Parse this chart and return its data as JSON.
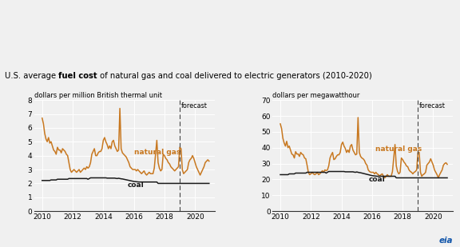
{
  "title_normal1": "U.S. average ",
  "title_bold": "fuel cost",
  "title_normal2": " of natural gas and coal delivered to electric generators (2010-2020)",
  "ylabel_left": "dollars per million British thermal unit",
  "ylabel_right": "dollars per megawatthour",
  "forecast_year": 2019.0,
  "ylim_left": [
    0,
    8
  ],
  "ylim_right": [
    0,
    70
  ],
  "yticks_left": [
    0,
    1,
    2,
    3,
    4,
    5,
    6,
    7,
    8
  ],
  "yticks_right": [
    0,
    10,
    20,
    30,
    40,
    50,
    60,
    70
  ],
  "xticks": [
    2010,
    2012,
    2014,
    2016,
    2018,
    2020
  ],
  "xlim": [
    2009.5,
    2021.3
  ],
  "ng_color": "#C87820",
  "coal_color": "#1a1a1a",
  "background_color": "#f0f0f0",
  "ng_label": "natural gas",
  "coal_label": "coal",
  "forecast_label": "forecast",
  "ng_data_left": [
    6.7,
    6.3,
    5.6,
    5.2,
    5.0,
    5.3,
    4.9,
    5.0,
    4.7,
    4.4,
    4.3,
    4.1,
    4.6,
    4.4,
    4.4,
    4.2,
    4.5,
    4.4,
    4.3,
    4.1,
    4.0,
    3.5,
    3.0,
    2.8,
    2.9,
    3.0,
    2.9,
    2.8,
    2.9,
    3.0,
    2.8,
    2.9,
    3.0,
    3.1,
    3.0,
    3.2,
    3.1,
    3.2,
    3.5,
    4.1,
    4.3,
    4.5,
    4.0,
    4.0,
    4.2,
    4.3,
    4.3,
    4.5,
    5.1,
    5.3,
    5.0,
    4.8,
    4.5,
    4.7,
    4.5,
    5.0,
    5.1,
    4.7,
    4.5,
    4.3,
    4.4,
    7.4,
    4.5,
    4.2,
    4.1,
    4.0,
    3.9,
    3.7,
    3.5,
    3.2,
    3.1,
    3.0,
    3.0,
    3.0,
    2.9,
    3.0,
    2.9,
    2.8,
    2.7,
    2.8,
    2.9,
    2.7,
    2.6,
    2.7,
    2.8,
    2.7,
    2.7,
    2.7,
    3.1,
    4.1,
    5.1,
    3.5,
    3.1,
    2.9,
    3.0,
    4.1,
    4.0,
    3.8,
    3.7,
    3.5,
    3.4,
    3.2,
    3.1,
    3.0,
    2.9,
    3.0,
    3.1,
    3.2,
    4.6,
    4.5,
    3.0,
    2.7,
    2.8,
    2.9,
    3.0,
    3.5,
    3.7,
    3.8,
    4.0,
    3.8,
    3.5,
    3.2,
    3.0,
    2.8,
    2.6,
    2.8,
    3.0,
    3.2,
    3.5,
    3.6,
    3.7,
    3.6
  ],
  "coal_data_left": [
    2.21,
    2.21,
    2.21,
    2.21,
    2.21,
    2.21,
    2.21,
    2.25,
    2.25,
    2.25,
    2.25,
    2.25,
    2.3,
    2.3,
    2.3,
    2.3,
    2.3,
    2.3,
    2.3,
    2.3,
    2.3,
    2.35,
    2.35,
    2.35,
    2.35,
    2.35,
    2.35,
    2.35,
    2.35,
    2.35,
    2.35,
    2.35,
    2.35,
    2.35,
    2.35,
    2.35,
    2.3,
    2.35,
    2.4,
    2.4,
    2.4,
    2.4,
    2.4,
    2.4,
    2.4,
    2.4,
    2.4,
    2.4,
    2.4,
    2.4,
    2.4,
    2.38,
    2.38,
    2.38,
    2.38,
    2.38,
    2.38,
    2.38,
    2.36,
    2.35,
    2.37,
    2.35,
    2.33,
    2.32,
    2.3,
    2.28,
    2.26,
    2.24,
    2.22,
    2.2,
    2.18,
    2.16,
    2.14,
    2.13,
    2.12,
    2.11,
    2.1,
    2.1,
    2.1,
    2.1,
    2.1,
    2.1,
    2.1,
    2.1,
    2.1,
    2.1,
    2.1,
    2.1,
    2.1,
    2.1,
    2.1,
    2.0,
    2.0,
    2.0,
    2.0,
    2.0,
    2.0,
    2.0,
    2.0,
    2.0,
    2.0,
    2.0,
    2.0,
    2.0,
    2.0,
    2.0,
    2.0,
    2.0,
    2.0,
    2.0,
    2.0,
    2.0,
    2.0,
    2.0,
    2.0,
    2.0,
    2.0,
    2.0,
    2.0,
    2.0,
    2.0,
    2.0,
    2.0,
    2.0,
    2.0,
    2.0,
    2.0,
    2.0,
    2.0,
    2.0,
    2.0,
    2.0
  ],
  "ng_data_right": [
    55,
    52,
    46,
    43,
    41,
    44,
    40,
    41,
    38.5,
    36,
    35.5,
    33.5,
    37.5,
    36,
    36,
    34.5,
    37,
    36,
    35.5,
    33.5,
    33,
    29,
    24.5,
    23,
    23.5,
    24.5,
    23.5,
    23,
    23.5,
    24.5,
    23,
    23.5,
    24.5,
    25.5,
    24.5,
    26,
    25.5,
    26,
    28.5,
    33.5,
    35.5,
    37,
    32.5,
    33,
    34.5,
    35.5,
    35.5,
    37,
    42,
    43.5,
    41,
    39.5,
    37,
    38.5,
    37,
    41,
    42,
    38.5,
    37,
    35.5,
    36,
    59,
    37,
    34.5,
    33.5,
    33,
    32,
    30,
    29,
    26,
    25,
    24.5,
    24.5,
    24.5,
    23.5,
    24.5,
    23.5,
    23,
    22,
    23,
    23.5,
    22,
    21,
    22,
    23,
    22,
    22,
    22,
    25,
    33.5,
    42,
    28.5,
    25,
    23.5,
    24.5,
    33.5,
    32.5,
    31,
    30,
    28.5,
    28,
    26,
    25,
    24.5,
    23.5,
    24.5,
    25,
    26,
    37,
    37,
    24.5,
    22,
    23,
    23.5,
    24.5,
    29,
    30,
    31,
    33,
    31,
    29,
    26,
    24.5,
    23,
    21,
    23,
    24.5,
    26,
    29,
    30,
    30.5,
    29.5
  ],
  "coal_data_right": [
    23,
    23,
    23,
    23,
    23,
    23,
    23,
    23.5,
    23.5,
    23.5,
    23.5,
    23.5,
    24,
    24,
    24,
    24,
    24,
    24,
    24,
    24,
    24,
    24.5,
    24.5,
    24.5,
    24.5,
    24.5,
    24.5,
    24.5,
    24.5,
    24.5,
    24.5,
    24.5,
    24.5,
    24.5,
    24.5,
    24.5,
    24,
    24.5,
    25,
    25,
    25,
    25,
    25,
    25,
    25,
    25,
    25,
    25,
    25,
    25,
    25,
    24.8,
    24.8,
    24.8,
    24.8,
    24.8,
    24.8,
    24.8,
    24.6,
    24.5,
    24.7,
    24.5,
    24.3,
    24.2,
    24.0,
    23.8,
    23.6,
    23.4,
    23.2,
    23,
    22.8,
    22.6,
    22.4,
    22.3,
    22.2,
    22.1,
    22,
    22,
    22,
    22,
    22,
    22,
    22,
    22,
    22,
    22,
    22,
    22,
    22,
    22,
    22,
    21,
    21,
    21,
    21,
    21,
    21,
    21,
    21,
    21,
    21,
    21,
    21,
    21,
    21,
    21,
    21,
    21,
    21,
    21,
    21,
    21,
    21,
    21,
    21,
    21,
    21,
    21,
    21,
    21,
    21,
    21,
    21,
    21,
    21,
    21,
    21,
    21,
    21,
    21,
    21,
    21
  ]
}
